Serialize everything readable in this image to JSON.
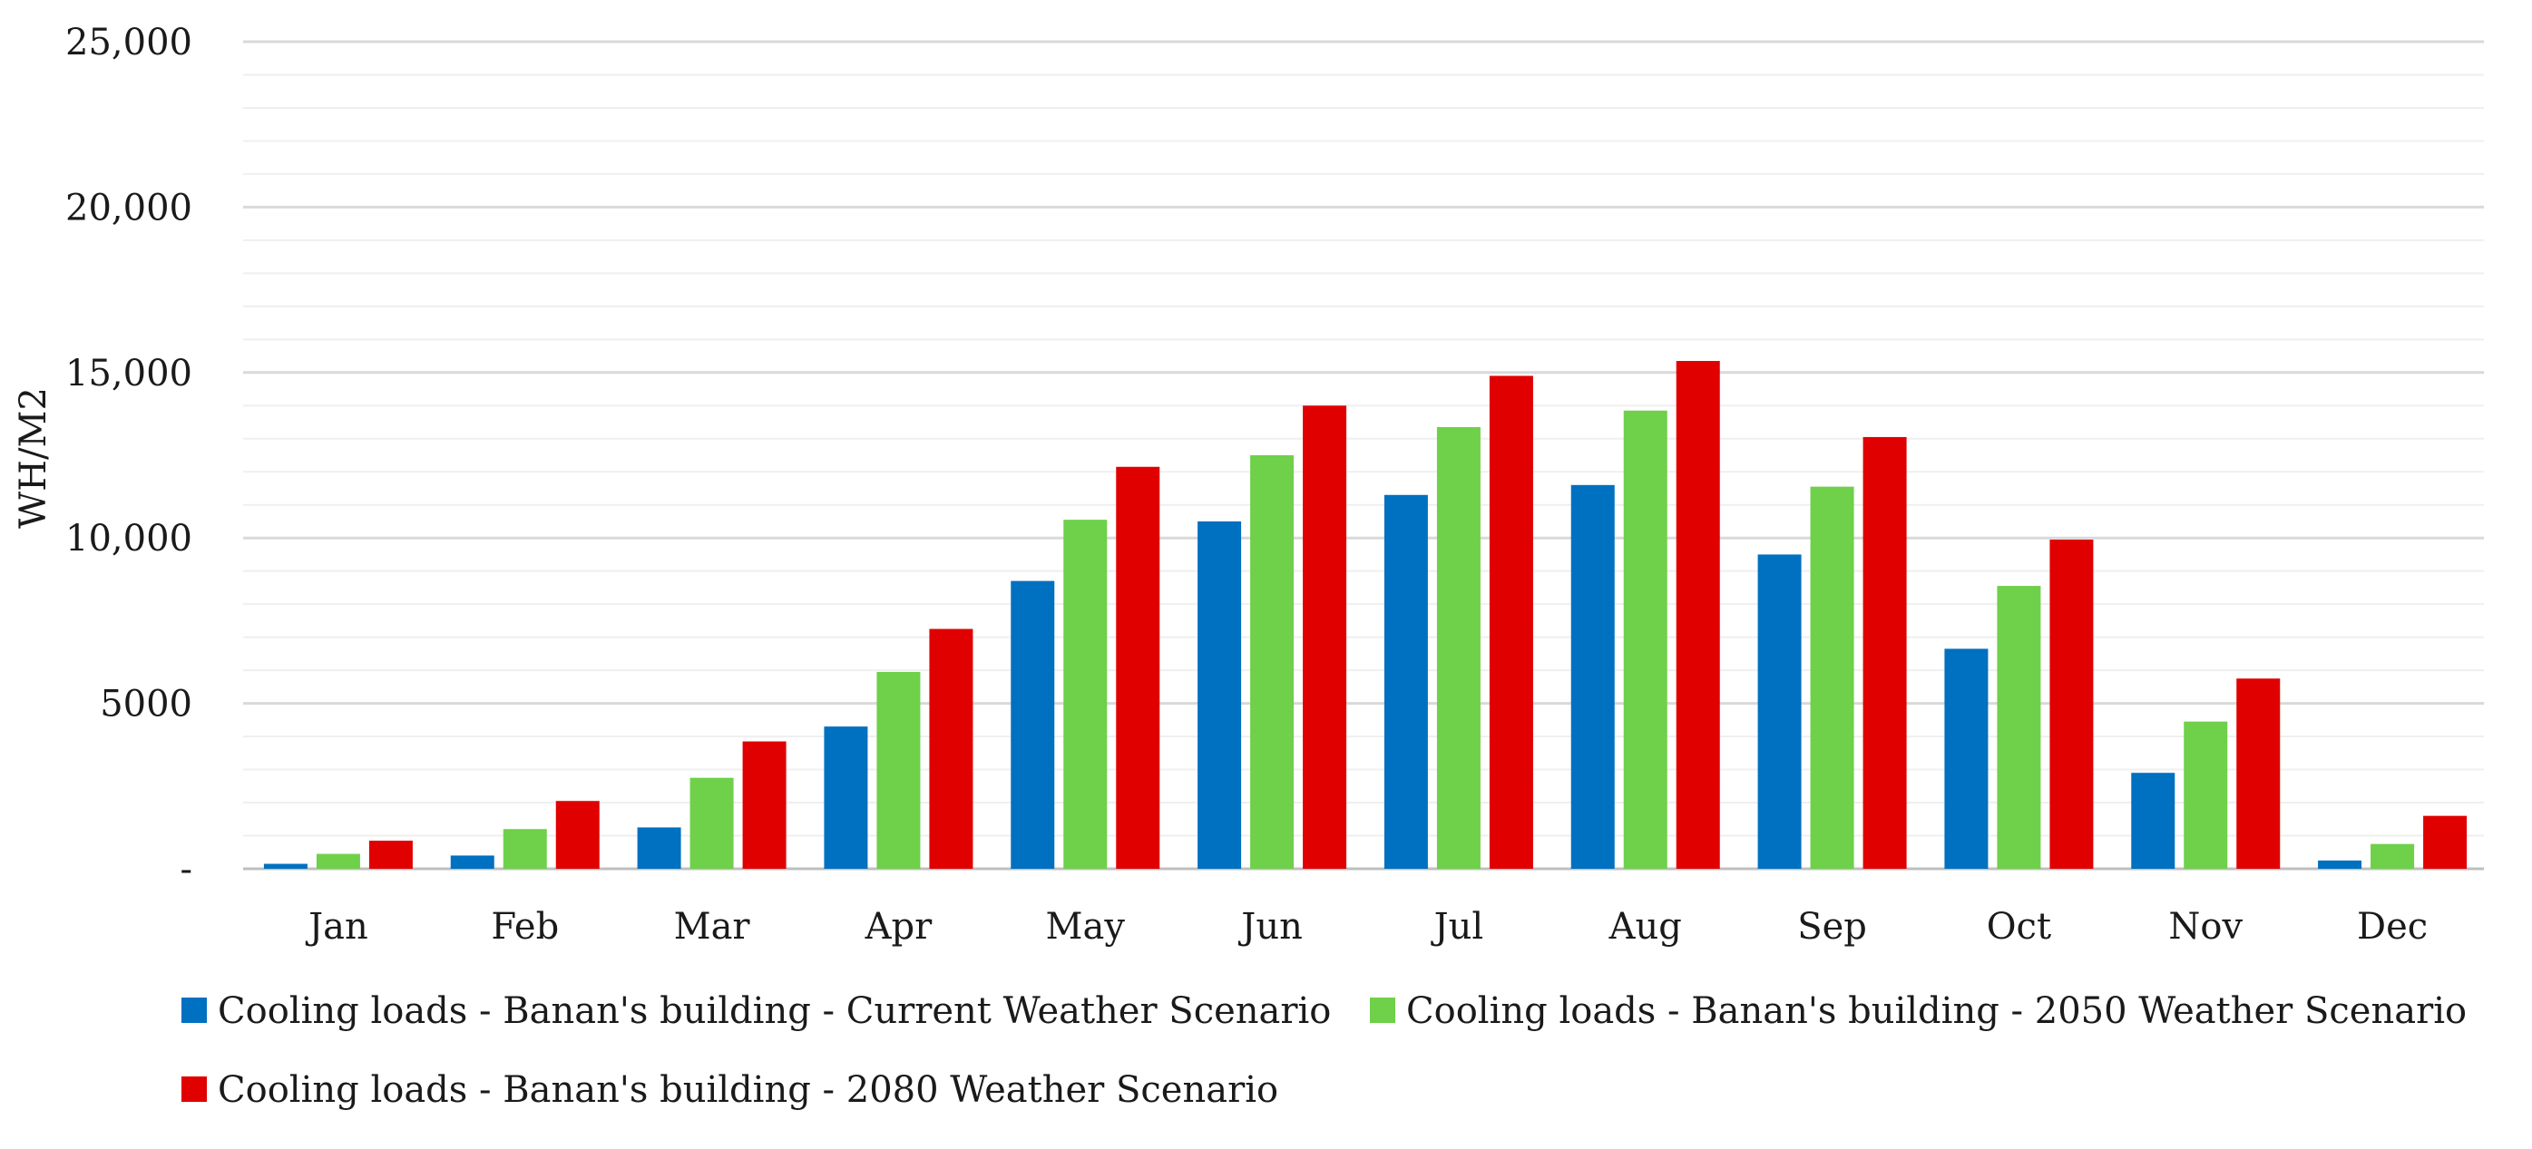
{
  "chart_data": {
    "type": "bar",
    "title": "",
    "xlabel": "",
    "ylabel": "WH/M2",
    "ylim": [
      0,
      25000
    ],
    "y_ticks": [
      {
        "value": 0,
        "label": "-"
      },
      {
        "value": 5000,
        "label": "5000"
      },
      {
        "value": 10000,
        "label": "10,000"
      },
      {
        "value": 15000,
        "label": "15,000"
      },
      {
        "value": 20000,
        "label": "20,000"
      },
      {
        "value": 25000,
        "label": "25,000"
      }
    ],
    "minor_gridline_step": 1000,
    "grid": true,
    "legend_position": "bottom",
    "categories": [
      "Jan",
      "Feb",
      "Mar",
      "Apr",
      "May",
      "Jun",
      "Jul",
      "Aug",
      "Sep",
      "Oct",
      "Nov",
      "Dec"
    ],
    "series": [
      {
        "name": "Cooling loads - Banan's building - Current Weather Scenario",
        "color": "#0070C0",
        "values": [
          150,
          400,
          1250,
          4300,
          8700,
          10500,
          11300,
          11600,
          9500,
          6650,
          2900,
          250
        ]
      },
      {
        "name": "Cooling loads - Banan's building - 2050 Weather Scenario",
        "color": "#6FD04A",
        "values": [
          450,
          1200,
          2750,
          5950,
          10550,
          12500,
          13350,
          13850,
          11550,
          8550,
          4450,
          750
        ]
      },
      {
        "name": "Cooling loads - Banan's building - 2080 Weather Scenario",
        "color": "#E00000",
        "values": [
          850,
          2050,
          3850,
          7250,
          12150,
          14000,
          14900,
          15350,
          13050,
          9950,
          5750,
          1600
        ]
      }
    ]
  }
}
